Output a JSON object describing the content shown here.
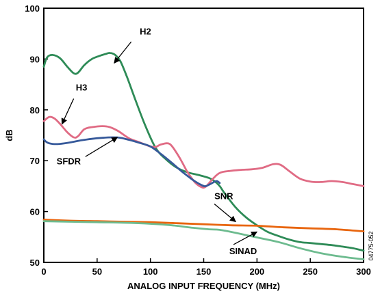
{
  "chart_data": {
    "type": "line",
    "xlabel": "ANALOG INPUT FREQUENCY (MHz)",
    "ylabel": "dB",
    "xlim": [
      0,
      300
    ],
    "ylim": [
      50,
      100
    ],
    "x_ticks": [
      "0",
      "50",
      "100",
      "150",
      "200",
      "250",
      "300"
    ],
    "y_ticks": [
      "50",
      "60",
      "70",
      "80",
      "90",
      "100"
    ],
    "grid": false,
    "legend": "none",
    "figure_id": "04775-052",
    "series": [
      {
        "name": "H2",
        "color": "#2e8b57",
        "points": [
          [
            0,
            88.5
          ],
          [
            3,
            90.3
          ],
          [
            8,
            90.8
          ],
          [
            15,
            90.2
          ],
          [
            22,
            88.5
          ],
          [
            28,
            87.2
          ],
          [
            32,
            87.3
          ],
          [
            38,
            88.8
          ],
          [
            45,
            90.0
          ],
          [
            52,
            90.6
          ],
          [
            58,
            91.0
          ],
          [
            62,
            91.2
          ],
          [
            67,
            90.8
          ],
          [
            72,
            89.5
          ],
          [
            78,
            86.5
          ],
          [
            85,
            82.5
          ],
          [
            95,
            77.0
          ],
          [
            105,
            72.5
          ],
          [
            115,
            70.2
          ],
          [
            125,
            68.6
          ],
          [
            135,
            67.7
          ],
          [
            145,
            67.2
          ],
          [
            155,
            66.6
          ],
          [
            160,
            66.0
          ],
          [
            165,
            65.0
          ],
          [
            170,
            63.5
          ],
          [
            180,
            60.8
          ],
          [
            190,
            58.8
          ],
          [
            200,
            57.3
          ],
          [
            210,
            56.0
          ],
          [
            220,
            55.2
          ],
          [
            230,
            54.5
          ],
          [
            240,
            54.0
          ],
          [
            250,
            53.8
          ],
          [
            260,
            53.6
          ],
          [
            270,
            53.4
          ],
          [
            280,
            53.1
          ],
          [
            290,
            52.8
          ],
          [
            300,
            52.3
          ]
        ]
      },
      {
        "name": "H3",
        "color": "#e06b84",
        "points": [
          [
            0,
            77.8
          ],
          [
            5,
            78.6
          ],
          [
            10,
            78.3
          ],
          [
            15,
            77.3
          ],
          [
            22,
            75.6
          ],
          [
            28,
            74.6
          ],
          [
            32,
            74.8
          ],
          [
            38,
            76.2
          ],
          [
            45,
            76.6
          ],
          [
            55,
            76.8
          ],
          [
            62,
            76.6
          ],
          [
            70,
            75.8
          ],
          [
            80,
            74.4
          ],
          [
            90,
            73.6
          ],
          [
            100,
            72.8
          ],
          [
            105,
            72.7
          ],
          [
            110,
            73.2
          ],
          [
            118,
            73.3
          ],
          [
            125,
            71.4
          ],
          [
            130,
            69.6
          ],
          [
            135,
            67.7
          ],
          [
            142,
            65.7
          ],
          [
            148,
            64.8
          ],
          [
            152,
            64.9
          ],
          [
            158,
            66.3
          ],
          [
            165,
            67.6
          ],
          [
            175,
            68.0
          ],
          [
            185,
            68.2
          ],
          [
            195,
            68.3
          ],
          [
            205,
            68.6
          ],
          [
            215,
            69.3
          ],
          [
            222,
            69.2
          ],
          [
            230,
            68.0
          ],
          [
            240,
            66.5
          ],
          [
            250,
            65.9
          ],
          [
            260,
            65.8
          ],
          [
            270,
            66.0
          ],
          [
            280,
            65.8
          ],
          [
            290,
            65.4
          ],
          [
            300,
            65.0
          ]
        ]
      },
      {
        "name": "SFDR",
        "color": "#36599a",
        "points": [
          [
            0,
            74.2
          ],
          [
            3,
            73.6
          ],
          [
            8,
            73.3
          ],
          [
            15,
            73.3
          ],
          [
            25,
            73.6
          ],
          [
            35,
            74.0
          ],
          [
            45,
            74.3
          ],
          [
            55,
            74.5
          ],
          [
            65,
            74.6
          ],
          [
            72,
            74.5
          ],
          [
            80,
            74.1
          ],
          [
            90,
            73.5
          ],
          [
            100,
            72.8
          ],
          [
            110,
            71.3
          ],
          [
            120,
            69.6
          ],
          [
            130,
            67.8
          ],
          [
            140,
            66.2
          ],
          [
            148,
            65.2
          ],
          [
            152,
            65.0
          ],
          [
            157,
            65.5
          ],
          [
            162,
            66.0
          ],
          [
            165,
            65.6
          ]
        ]
      },
      {
        "name": "SNR",
        "color": "#e8650e",
        "points": [
          [
            0,
            58.4
          ],
          [
            25,
            58.2
          ],
          [
            50,
            58.1
          ],
          [
            75,
            58.0
          ],
          [
            100,
            57.9
          ],
          [
            125,
            57.7
          ],
          [
            150,
            57.5
          ],
          [
            175,
            57.3
          ],
          [
            200,
            57.2
          ],
          [
            225,
            56.9
          ],
          [
            250,
            56.7
          ],
          [
            275,
            56.5
          ],
          [
            300,
            56.1
          ]
        ]
      },
      {
        "name": "SINAD",
        "color": "#6dbb8f",
        "points": [
          [
            0,
            58.1
          ],
          [
            25,
            58.0
          ],
          [
            50,
            57.9
          ],
          [
            75,
            57.8
          ],
          [
            100,
            57.6
          ],
          [
            120,
            57.3
          ],
          [
            140,
            56.8
          ],
          [
            155,
            56.5
          ],
          [
            165,
            56.4
          ],
          [
            180,
            55.8
          ],
          [
            200,
            54.9
          ],
          [
            220,
            54.0
          ],
          [
            240,
            52.8
          ],
          [
            260,
            51.8
          ],
          [
            280,
            51.1
          ],
          [
            300,
            50.6
          ]
        ]
      }
    ],
    "annotations": [
      {
        "text": "H2",
        "series": "H2",
        "label_at": [
          90,
          94.8
        ],
        "arrow_from": [
          82,
          93.4
        ],
        "arrow_to": [
          66,
          89.2
        ]
      },
      {
        "text": "H3",
        "series": "H3",
        "label_at": [
          30,
          83.8
        ],
        "arrow_from": [
          28,
          82.2
        ],
        "arrow_to": [
          17,
          77.2
        ]
      },
      {
        "text": "SFDR",
        "series": "SFDR",
        "label_at": [
          12,
          69.3
        ],
        "arrow_from": [
          39,
          70.8
        ],
        "arrow_to": [
          69,
          74.6
        ]
      },
      {
        "text": "SNR",
        "series": "SNR",
        "label_at": [
          160,
          62.4
        ],
        "arrow_from": [
          160,
          61.5
        ],
        "arrow_to": [
          180,
          58.0
        ]
      },
      {
        "text": "SINAD",
        "series": "SINAD",
        "label_at": [
          174,
          51.6
        ],
        "arrow_from": [
          178,
          53.5
        ],
        "arrow_to": [
          200,
          56.0
        ]
      }
    ]
  }
}
